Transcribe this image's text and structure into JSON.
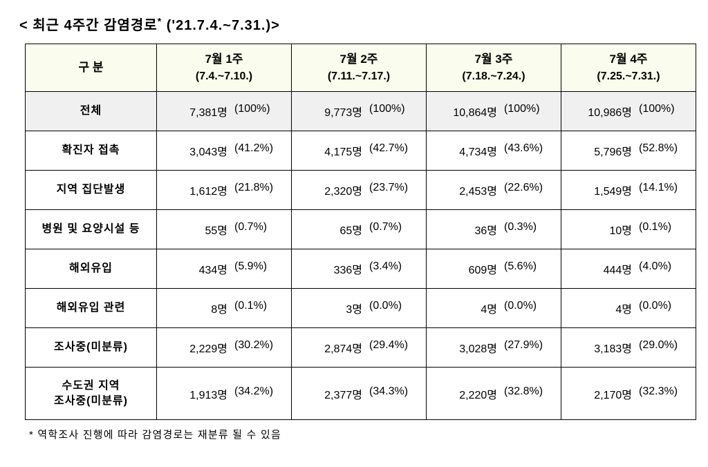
{
  "title_prefix": "<",
  "title_core": "최근  4주간  감염경로",
  "title_sup": "*",
  "title_range": "('21.7.4.~7.31.)",
  "title_suffix": ">",
  "header_category": "구  분",
  "weeks": [
    {
      "title": "7월  1주",
      "range": "(7.4.~7.10.)"
    },
    {
      "title": "7월  2주",
      "range": "(7.11.~7.17.)"
    },
    {
      "title": "7월  3주",
      "range": "(7.18.~7.24.)"
    },
    {
      "title": "7월  4주",
      "range": "(7.25.~7.31.)"
    }
  ],
  "rows": [
    {
      "label": "전체",
      "total": true,
      "cells": [
        {
          "count": "7,381명",
          "pct": "(100%)"
        },
        {
          "count": "9,773명",
          "pct": "(100%)"
        },
        {
          "count": "10,864명",
          "pct": "(100%)"
        },
        {
          "count": "10,986명",
          "pct": "(100%)"
        }
      ]
    },
    {
      "label": "확진자  접촉",
      "cells": [
        {
          "count": "3,043명",
          "pct": "(41.2%)"
        },
        {
          "count": "4,175명",
          "pct": "(42.7%)"
        },
        {
          "count": "4,734명",
          "pct": "(43.6%)"
        },
        {
          "count": "5,796명",
          "pct": "(52.8%)"
        }
      ]
    },
    {
      "label": "지역  집단발생",
      "cells": [
        {
          "count": "1,612명",
          "pct": "(21.8%)"
        },
        {
          "count": "2,320명",
          "pct": "(23.7%)"
        },
        {
          "count": "2,453명",
          "pct": "(22.6%)"
        },
        {
          "count": "1,549명",
          "pct": "(14.1%)"
        }
      ]
    },
    {
      "label": "병원  및  요양시설  등",
      "cells": [
        {
          "count": "55명",
          "pct": "(0.7%)"
        },
        {
          "count": "65명",
          "pct": "(0.7%)"
        },
        {
          "count": "36명",
          "pct": "(0.3%)"
        },
        {
          "count": "10명",
          "pct": "(0.1%)"
        }
      ]
    },
    {
      "label": "해외유입",
      "cells": [
        {
          "count": "434명",
          "pct": "(5.9%)"
        },
        {
          "count": "336명",
          "pct": "(3.4%)"
        },
        {
          "count": "609명",
          "pct": "(5.6%)"
        },
        {
          "count": "444명",
          "pct": "(4.0%)"
        }
      ]
    },
    {
      "label": "해외유입  관련",
      "cells": [
        {
          "count": "8명",
          "pct": "(0.1%)"
        },
        {
          "count": "3명",
          "pct": "(0.0%)"
        },
        {
          "count": "4명",
          "pct": "(0.0%)"
        },
        {
          "count": "4명",
          "pct": "(0.0%)"
        }
      ]
    },
    {
      "label": "조사중(미분류)",
      "cells": [
        {
          "count": "2,229명",
          "pct": "(30.2%)"
        },
        {
          "count": "2,874명",
          "pct": "(29.4%)"
        },
        {
          "count": "3,028명",
          "pct": "(27.9%)"
        },
        {
          "count": "3,183명",
          "pct": "(29.0%)"
        }
      ]
    },
    {
      "label": "수도권  지역\n조사중(미분류)",
      "cells": [
        {
          "count": "1,913명",
          "pct": "(34.2%)"
        },
        {
          "count": "2,377명",
          "pct": "(34.3%)"
        },
        {
          "count": "2,220명",
          "pct": "(32.8%)"
        },
        {
          "count": "2,170명",
          "pct": "(32.3%)"
        }
      ]
    }
  ],
  "footnote": "*  역학조사  진행에  따라  감염경로는  재분류  될  수  있음",
  "colors": {
    "header_bg": "#fafced",
    "total_bg": "#f0f0f0",
    "border": "#000000",
    "text": "#000000",
    "page_bg": "#ffffff"
  },
  "fontsizes": {
    "title": 20,
    "header": 17,
    "body": 16,
    "footnote": 15
  }
}
